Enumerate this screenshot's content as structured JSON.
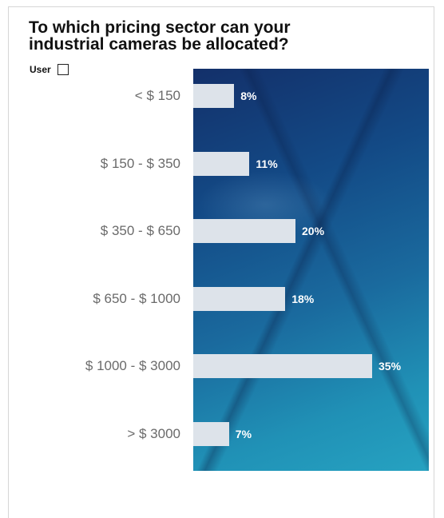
{
  "chart_data": {
    "type": "bar",
    "orientation": "horizontal",
    "title": "To which pricing sector can your industrial cameras be allocated?",
    "legend": [
      {
        "name": "User"
      }
    ],
    "categories": [
      "< $ 150",
      "$ 150 - $ 350",
      "$ 350 - $ 650",
      "$ 650 - $ 1000",
      "$ 1000 - $ 3000",
      "> $ 3000"
    ],
    "series": [
      {
        "name": "User",
        "values": [
          8,
          11,
          20,
          18,
          35,
          7
        ],
        "value_labels": [
          "8%",
          "11%",
          "20%",
          "18%",
          "35%",
          "7%"
        ]
      }
    ],
    "xlim": [
      0,
      40
    ],
    "grid": false,
    "legend_placement": "top-left",
    "colors": {
      "bar": "#dde3ea",
      "panel": "#134a86",
      "label": "#6a6a6a"
    }
  }
}
